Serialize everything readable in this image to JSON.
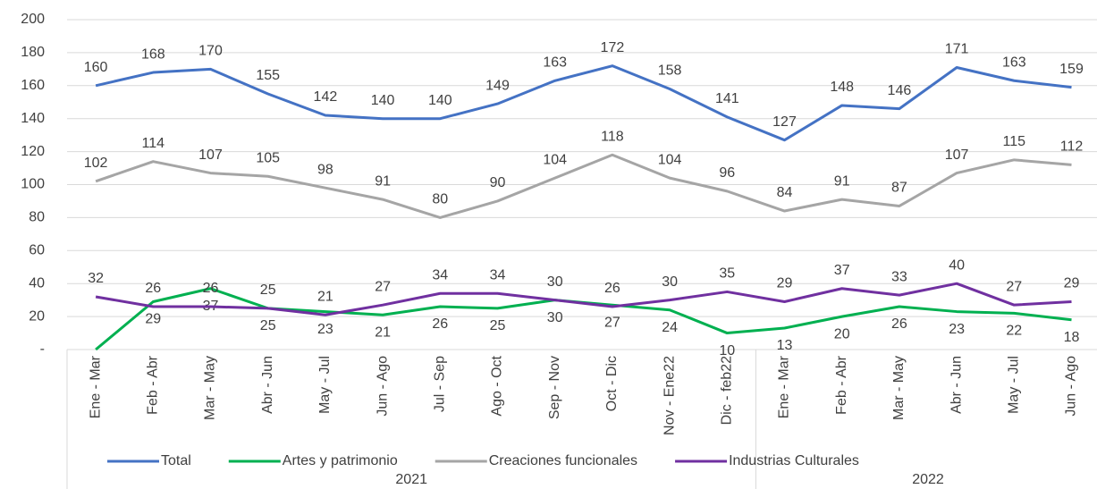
{
  "chart_data": {
    "type": "line",
    "category_groups": [
      {
        "label": "2021",
        "categories": [
          "Ene - Mar",
          "Feb - Abr",
          "Mar - May",
          "Abr - Jun",
          "May - Jul",
          "Jun - Ago",
          "Jul - Sep",
          "Ago - Oct",
          "Sep - Nov",
          "Oct - Dic",
          "Nov - Ene22",
          "Dic - feb22"
        ]
      },
      {
        "label": "2022",
        "categories": [
          "Ene - Mar",
          "Feb - Abr",
          "Mar - May",
          "Abr - Jun",
          "May - Jul",
          "Jun - Ago"
        ]
      }
    ],
    "series": [
      {
        "name": "Total",
        "color": "#4472c4",
        "values": [
          160,
          168,
          170,
          155,
          142,
          140,
          140,
          149,
          163,
          172,
          158,
          141,
          127,
          148,
          146,
          171,
          163,
          159
        ]
      },
      {
        "name": "Artes y patrimonio",
        "color": "#00b050",
        "values": [
          0,
          29,
          37,
          25,
          23,
          21,
          26,
          25,
          30,
          27,
          24,
          10,
          13,
          20,
          26,
          23,
          22,
          18
        ],
        "value_labels": [
          "-",
          "29",
          "37",
          "25",
          "23",
          "21",
          "26",
          "25",
          "30",
          "27",
          "24",
          "10",
          "13",
          "20",
          "26",
          "23",
          "22",
          "18"
        ]
      },
      {
        "name": "Creaciones funcionales",
        "color": "#a5a5a5",
        "values": [
          102,
          114,
          107,
          105,
          98,
          91,
          80,
          90,
          104,
          118,
          104,
          96,
          84,
          91,
          87,
          107,
          115,
          112
        ]
      },
      {
        "name": "Industrias Culturales",
        "color": "#7030a0",
        "values": [
          32,
          26,
          26,
          25,
          21,
          27,
          34,
          34,
          30,
          26,
          30,
          35,
          29,
          37,
          33,
          40,
          27,
          29
        ]
      }
    ],
    "ylim": [
      0,
      200
    ],
    "yticks": [
      {
        "value": 0,
        "label": "-"
      },
      20,
      40,
      60,
      80,
      100,
      120,
      140,
      160,
      180,
      200
    ],
    "grid": true,
    "legend": "bottom"
  }
}
